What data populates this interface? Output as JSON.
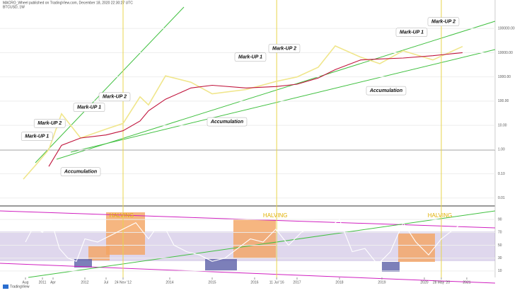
{
  "header": {
    "line1": "MACRO_Wheel published on TradingView.com, December 18, 2020 22:30:27 UTC",
    "line2": "BTCUSD, 1W"
  },
  "footer": "TradingView",
  "chart_data": [
    {
      "type": "line",
      "log_scale": true,
      "xlim": [
        2010,
        2021.667
      ],
      "ylim": [
        0.005,
        1500000
      ],
      "xticks": [
        {
          "value": 2010.6,
          "label": "Aug"
        },
        {
          "value": 2011,
          "label": "2011"
        },
        {
          "value": 2011.25,
          "label": "Apr"
        },
        {
          "value": 2012,
          "label": "2012"
        },
        {
          "value": 2012.5,
          "label": "Jul"
        },
        {
          "value": 2012.9,
          "label": "24 Nov '12"
        },
        {
          "value": 2014,
          "label": "2014"
        },
        {
          "value": 2015,
          "label": "2015"
        },
        {
          "value": 2016,
          "label": "2016"
        },
        {
          "value": 2016.52,
          "label": "11 Jul '16"
        },
        {
          "value": 2017,
          "label": "2017"
        },
        {
          "value": 2018,
          "label": "2018"
        },
        {
          "value": 2019,
          "label": "2019"
        },
        {
          "value": 2020,
          "label": "2020"
        },
        {
          "value": 2020.4,
          "label": "28 May '20"
        },
        {
          "value": 2021,
          "label": "2021"
        }
      ],
      "yticks": [
        {
          "value": 0.01,
          "label": "0.01"
        },
        {
          "value": 0.1,
          "label": "0.10"
        },
        {
          "value": 1,
          "label": "1.00"
        },
        {
          "value": 10,
          "label": "10.00"
        },
        {
          "value": 100,
          "label": "100.00"
        },
        {
          "value": 1000,
          "label": "1000.00"
        },
        {
          "value": 10000,
          "label": "10000.00"
        },
        {
          "value": 100000,
          "label": "100000.00"
        }
      ],
      "halvings": [
        2012.9,
        2016.52,
        2020.4
      ],
      "x": [
        2010.55,
        2010.9,
        2011.15,
        2011.45,
        2011.9,
        2012.5,
        2012.9,
        2013.3,
        2013.5,
        2013.9,
        2014.5,
        2015.0,
        2015.8,
        2016.5,
        2017.0,
        2017.5,
        2017.9,
        2018.5,
        2018.95,
        2019.5,
        2020.2,
        2020.9
      ],
      "series": [
        {
          "name": "BTCUSD",
          "color": "#f0e68c",
          "values": [
            0.06,
            0.3,
            1,
            30,
            3,
            7,
            12,
            150,
            70,
            1100,
            600,
            200,
            300,
            650,
            1000,
            2500,
            19000,
            6500,
            3500,
            12000,
            5000,
            18000
          ]
        },
        {
          "name": "MA",
          "color": "#c0143c",
          "values": [
            null,
            null,
            0.2,
            1.5,
            3,
            4,
            6,
            15,
            40,
            120,
            350,
            450,
            350,
            400,
            500,
            900,
            2000,
            5000,
            5500,
            6000,
            7500,
            10000
          ]
        }
      ],
      "annotations": [
        {
          "text": "Mark-UP 1",
          "x": 2010.87,
          "y": 3.5
        },
        {
          "text": "Mark-UP 2",
          "x": 2011.17,
          "y": 12
        },
        {
          "text": "Accumulation",
          "x": 2011.9,
          "y": 0.12
        },
        {
          "text": "Mark-UP 1",
          "x": 2012.1,
          "y": 55
        },
        {
          "text": "Mark-UP 2",
          "x": 2012.7,
          "y": 150
        },
        {
          "text": "Accumulation",
          "x": 2015.35,
          "y": 14
        },
        {
          "text": "Mark-UP 1",
          "x": 2015.9,
          "y": 6600
        },
        {
          "text": "Mark-UP 2",
          "x": 2016.7,
          "y": 15000
        },
        {
          "text": "Accumulation",
          "x": 2019.1,
          "y": 270
        },
        {
          "text": "Mark-UP 1",
          "x": 2019.7,
          "y": 69000
        },
        {
          "text": "Mark-UP 2",
          "x": 2020.45,
          "y": 190000
        }
      ]
    },
    {
      "type": "line",
      "xlim": [
        2010,
        2021.667
      ],
      "ylim": [
        0,
        110
      ],
      "yticks": [
        10,
        30,
        50,
        70,
        90
      ],
      "x": [
        2010.6,
        2010.8,
        2011.0,
        2011.2,
        2011.4,
        2011.6,
        2011.8,
        2012.0,
        2012.3,
        2012.6,
        2012.9,
        2013.2,
        2013.5,
        2013.8,
        2014.1,
        2014.4,
        2014.7,
        2015.0,
        2015.3,
        2015.6,
        2015.9,
        2016.2,
        2016.5,
        2016.8,
        2017.1,
        2017.4,
        2017.7,
        2018.0,
        2018.3,
        2018.6,
        2018.9,
        2019.2,
        2019.5,
        2019.8,
        2020.1,
        2020.4,
        2020.7,
        2021.0
      ],
      "series": [
        {
          "name": "RSI",
          "color": "#ffffff",
          "values": [
            55,
            80,
            70,
            90,
            45,
            30,
            25,
            60,
            55,
            65,
            75,
            85,
            60,
            88,
            50,
            40,
            35,
            25,
            30,
            45,
            60,
            55,
            75,
            50,
            70,
            80,
            75,
            90,
            40,
            45,
            20,
            40,
            85,
            55,
            35,
            60,
            75,
            90
          ]
        }
      ],
      "halving_label": "HALVING"
    }
  ]
}
